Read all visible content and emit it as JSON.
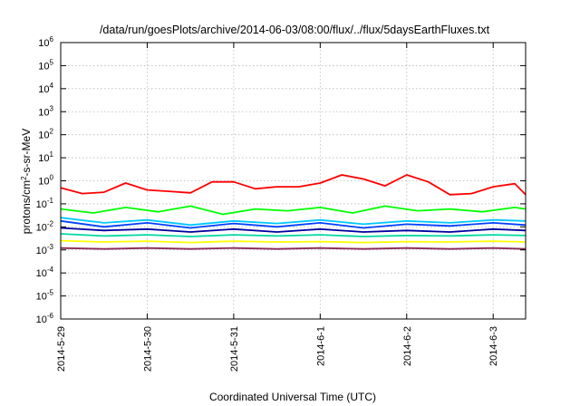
{
  "chart_data": {
    "type": "line",
    "title": "/data/run/goesPlots/archive/2014-06-03/08:00/flux/../flux/5daysEarthFluxes.txt",
    "xlabel": "Coordinated Universal Time (UTC)",
    "ylabel": {
      "base": "protons/cm",
      "sup": "2",
      "rest": "-s-sr-MeV"
    },
    "y_scale": "log",
    "ylim": [
      1e-06,
      1000000.0
    ],
    "xlim": [
      "2014-05-29 00:00",
      "2014-06-03 09:00"
    ],
    "grid": true,
    "y_ticks": [
      {
        "base": "10",
        "exp": "-6",
        "value": 1e-06
      },
      {
        "base": "10",
        "exp": "-5",
        "value": 1e-05
      },
      {
        "base": "10",
        "exp": "-4",
        "value": 0.0001
      },
      {
        "base": "10",
        "exp": "-3",
        "value": 0.001
      },
      {
        "base": "10",
        "exp": "-2",
        "value": 0.01
      },
      {
        "base": "10",
        "exp": "-1",
        "value": 0.1
      },
      {
        "base": "10",
        "exp": "0",
        "value": 1
      },
      {
        "base": "10",
        "exp": "1",
        "value": 10.0
      },
      {
        "base": "10",
        "exp": "2",
        "value": 100.0
      },
      {
        "base": "10",
        "exp": "3",
        "value": 1000.0
      },
      {
        "base": "10",
        "exp": "4",
        "value": 10000.0
      },
      {
        "base": "10",
        "exp": "5",
        "value": 100000.0
      },
      {
        "base": "10",
        "exp": "6",
        "value": 1000000.0
      }
    ],
    "x_ticks": [
      {
        "label": "2014-5-29",
        "x": "2014-05-29 00:00"
      },
      {
        "label": "2014-5-30",
        "x": "2014-05-30 00:00"
      },
      {
        "label": "2014-5-31",
        "x": "2014-05-31 00:00"
      },
      {
        "label": "2014-6-1",
        "x": "2014-06-01 00:00"
      },
      {
        "label": "2014-6-2",
        "x": "2014-06-02 00:00"
      },
      {
        "label": "2014-6-3",
        "x": "2014-06-03 00:00"
      }
    ],
    "series": [
      {
        "color": "#ff0000",
        "x": [
          "2014-05-29 00:00",
          "2014-05-29 06:00",
          "2014-05-29 12:00",
          "2014-05-29 18:00",
          "2014-05-30 00:00",
          "2014-05-30 06:00",
          "2014-05-30 12:00",
          "2014-05-30 18:00",
          "2014-05-31 00:00",
          "2014-05-31 06:00",
          "2014-05-31 12:00",
          "2014-05-31 18:00",
          "2014-06-01 00:00",
          "2014-06-01 06:00",
          "2014-06-01 12:00",
          "2014-06-01 18:00",
          "2014-06-02 00:00",
          "2014-06-02 06:00",
          "2014-06-02 12:00",
          "2014-06-02 18:00",
          "2014-06-03 00:00",
          "2014-06-03 06:00",
          "2014-06-03 09:00"
        ],
        "y": [
          0.5,
          0.28,
          0.32,
          0.8,
          0.4,
          0.35,
          0.3,
          0.9,
          0.9,
          0.45,
          0.55,
          0.55,
          0.8,
          1.8,
          1.2,
          0.6,
          1.8,
          0.9,
          0.25,
          0.28,
          0.55,
          0.75,
          0.25
        ]
      },
      {
        "color": "#00ff00",
        "x": [
          "2014-05-29 00:00",
          "2014-05-29 09:00",
          "2014-05-29 18:00",
          "2014-05-30 03:00",
          "2014-05-30 12:00",
          "2014-05-30 21:00",
          "2014-05-31 06:00",
          "2014-05-31 15:00",
          "2014-06-01 00:00",
          "2014-06-01 09:00",
          "2014-06-01 18:00",
          "2014-06-02 03:00",
          "2014-06-02 12:00",
          "2014-06-02 21:00",
          "2014-06-03 06:00",
          "2014-06-03 09:00"
        ],
        "y": [
          0.06,
          0.04,
          0.07,
          0.045,
          0.08,
          0.035,
          0.06,
          0.05,
          0.07,
          0.04,
          0.08,
          0.05,
          0.06,
          0.045,
          0.07,
          0.06
        ]
      },
      {
        "color": "#00c8ff",
        "x": [
          "2014-05-29 00:00",
          "2014-05-29 12:00",
          "2014-05-30 00:00",
          "2014-05-30 12:00",
          "2014-05-31 00:00",
          "2014-05-31 12:00",
          "2014-06-01 00:00",
          "2014-06-01 12:00",
          "2014-06-02 00:00",
          "2014-06-02 12:00",
          "2014-06-03 00:00",
          "2014-06-03 09:00"
        ],
        "y": [
          0.025,
          0.015,
          0.02,
          0.012,
          0.018,
          0.014,
          0.02,
          0.013,
          0.018,
          0.015,
          0.02,
          0.018
        ]
      },
      {
        "color": "#0040ff",
        "x": [
          "2014-05-29 00:00",
          "2014-05-29 12:00",
          "2014-05-30 00:00",
          "2014-05-30 12:00",
          "2014-05-31 00:00",
          "2014-05-31 12:00",
          "2014-06-01 00:00",
          "2014-06-01 12:00",
          "2014-06-02 00:00",
          "2014-06-02 12:00",
          "2014-06-03 00:00",
          "2014-06-03 09:00"
        ],
        "y": [
          0.018,
          0.01,
          0.015,
          0.009,
          0.014,
          0.01,
          0.015,
          0.009,
          0.013,
          0.011,
          0.015,
          0.012
        ]
      },
      {
        "color": "#0000a0",
        "x": [
          "2014-05-29 00:00",
          "2014-05-29 12:00",
          "2014-05-30 00:00",
          "2014-05-30 12:00",
          "2014-05-31 00:00",
          "2014-05-31 12:00",
          "2014-06-01 00:00",
          "2014-06-01 12:00",
          "2014-06-02 00:00",
          "2014-06-02 12:00",
          "2014-06-03 00:00",
          "2014-06-03 09:00"
        ],
        "y": [
          0.009,
          0.007,
          0.008,
          0.006,
          0.008,
          0.006,
          0.008,
          0.006,
          0.007,
          0.006,
          0.008,
          0.007
        ]
      },
      {
        "color": "#00d8a0",
        "x": [
          "2014-05-29 00:00",
          "2014-05-29 12:00",
          "2014-05-30 00:00",
          "2014-05-30 12:00",
          "2014-05-31 00:00",
          "2014-05-31 12:00",
          "2014-06-01 00:00",
          "2014-06-01 12:00",
          "2014-06-02 00:00",
          "2014-06-02 12:00",
          "2014-06-03 00:00",
          "2014-06-03 09:00"
        ],
        "y": [
          0.005,
          0.004,
          0.0045,
          0.0038,
          0.0045,
          0.004,
          0.0045,
          0.0038,
          0.0042,
          0.004,
          0.0045,
          0.0042
        ]
      },
      {
        "color": "#ffff00",
        "x": [
          "2014-05-29 00:00",
          "2014-05-29 12:00",
          "2014-05-30 00:00",
          "2014-05-30 12:00",
          "2014-05-31 00:00",
          "2014-05-31 12:00",
          "2014-06-01 00:00",
          "2014-06-01 12:00",
          "2014-06-02 00:00",
          "2014-06-02 12:00",
          "2014-06-03 00:00",
          "2014-06-03 09:00"
        ],
        "y": [
          0.0025,
          0.0022,
          0.0024,
          0.0021,
          0.0024,
          0.0022,
          0.0023,
          0.0021,
          0.0023,
          0.0022,
          0.0024,
          0.0022
        ]
      },
      {
        "color": "#8b2a5a",
        "x": [
          "2014-05-29 00:00",
          "2014-05-29 12:00",
          "2014-05-30 00:00",
          "2014-05-30 12:00",
          "2014-05-31 00:00",
          "2014-05-31 12:00",
          "2014-06-01 00:00",
          "2014-06-01 12:00",
          "2014-06-02 00:00",
          "2014-06-02 12:00",
          "2014-06-03 00:00",
          "2014-06-03 09:00"
        ],
        "y": [
          0.0012,
          0.0011,
          0.0012,
          0.0011,
          0.0012,
          0.0011,
          0.0012,
          0.0011,
          0.0012,
          0.0011,
          0.0012,
          0.0011
        ]
      }
    ]
  }
}
